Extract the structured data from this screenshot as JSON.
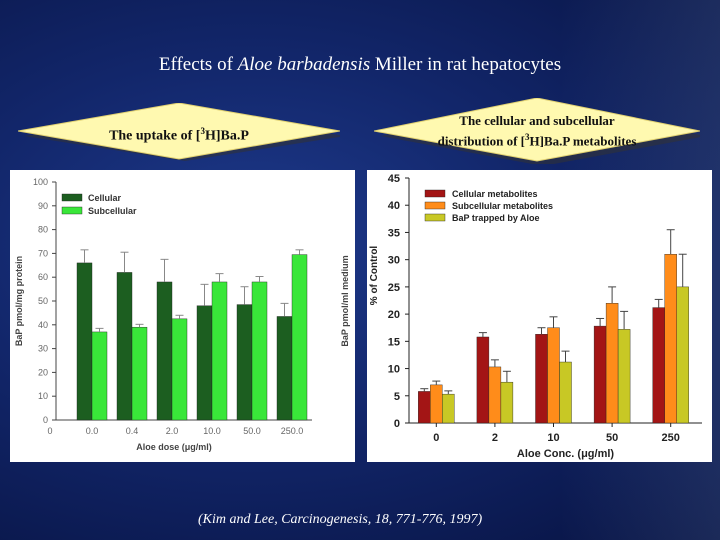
{
  "slide": {
    "title_part1": "Effects of ",
    "title_italic": "Aloe barbadensis",
    "title_part2": " Miller in rat hepatocytes",
    "left_banner_prefix": "The uptake of [",
    "left_banner_sup": "3",
    "left_banner_suffix": "H]Ba.P",
    "right_banner_line1": "The cellular and subcellular",
    "right_banner_line2_prefix": "distribution of [",
    "right_banner_line2_sup": "3",
    "right_banner_line2_suffix": "H]Ba.P metabolites",
    "citation": "(Kim and Lee, Carcinogenesis, 18, 771-776, 1997)"
  },
  "colors": {
    "cellular": "#1c5e20",
    "subcellular": "#39e639",
    "metab_cellular": "#a31515",
    "metab_subcellular": "#ff8c1a",
    "metab_trapped": "#c8c825",
    "banner_fill": "#fff9b0"
  },
  "chart_data": [
    {
      "type": "bar",
      "title": "",
      "xlabel": "Aloe dose (μg/ml)",
      "ylabel": "BaP pmol/mg protein",
      "ylabel_right": "BaP pmol/ml medium",
      "ylim": [
        0,
        100
      ],
      "yticks": [
        "0",
        "10",
        "20",
        "30",
        "40",
        "50",
        "60",
        "70",
        "80",
        "90",
        "100"
      ],
      "x_zero_label": "0",
      "categories": [
        "0.0",
        "0.4",
        "2.0",
        "10.0",
        "50.0",
        "250.0"
      ],
      "series": [
        {
          "name": "Cellular",
          "values": [
            66,
            62,
            58,
            48,
            48.5,
            43.5
          ],
          "errors": [
            5.5,
            8.5,
            9.5,
            9,
            7.5,
            5.5
          ]
        },
        {
          "name": "Subcellular",
          "values": [
            37,
            39,
            42.5,
            58,
            58,
            69.5
          ],
          "errors": [
            1.5,
            1.2,
            1.5,
            3.5,
            2.3,
            2
          ]
        }
      ],
      "legend_position": "top-left"
    },
    {
      "type": "bar",
      "title": "",
      "xlabel": "Aloe Conc. (μg/ml)",
      "ylabel": "% of Control",
      "ylim": [
        0,
        45
      ],
      "yticks": [
        "0",
        "5",
        "10",
        "15",
        "20",
        "25",
        "30",
        "35",
        "40",
        "45"
      ],
      "categories": [
        "0",
        "2",
        "10",
        "50",
        "250"
      ],
      "series": [
        {
          "name": "Cellular metabolites",
          "values": [
            5.8,
            15.8,
            16.3,
            17.8,
            21.2
          ],
          "errors": [
            0.5,
            0.8,
            1.2,
            1.4,
            1.5
          ]
        },
        {
          "name": "Subcellular metabolites",
          "values": [
            7,
            10.3,
            17.5,
            22,
            31
          ],
          "errors": [
            0.7,
            1.3,
            2,
            3,
            4.5
          ]
        },
        {
          "name": "BaP trapped by Aloe",
          "values": [
            5.3,
            7.5,
            11.2,
            17.2,
            25
          ],
          "errors": [
            0.6,
            2,
            2,
            3.3,
            6
          ]
        }
      ],
      "legend_position": "top-left"
    }
  ]
}
